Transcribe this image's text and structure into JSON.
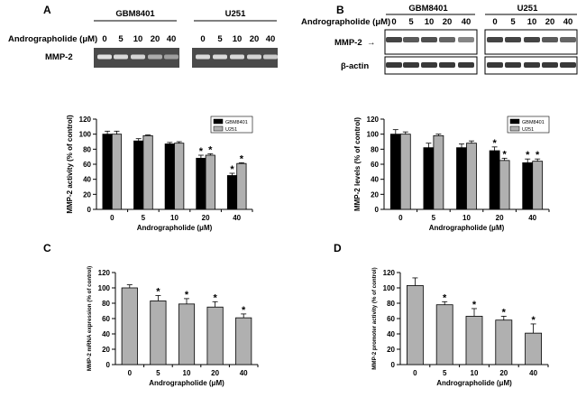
{
  "panels": {
    "A": {
      "label": "A",
      "treatment_label": "Andrographolide (μM)",
      "cell_lines": [
        "GBM8401",
        "U251"
      ],
      "doses": [
        "0",
        "5",
        "10",
        "20",
        "40"
      ],
      "blot_rows": [
        "MMP-2"
      ],
      "band_intensity": {
        "GBM8401": [
          0.9,
          0.85,
          0.82,
          0.55,
          0.45
        ],
        "U251": [
          0.85,
          0.85,
          0.85,
          0.82,
          0.75
        ]
      }
    },
    "B": {
      "label": "B",
      "treatment_label": "Andrographolide (μM)",
      "cell_lines": [
        "GBM8401",
        "U251"
      ],
      "doses": [
        "0",
        "5",
        "10",
        "20",
        "40"
      ],
      "blot_rows": [
        "MMP-2",
        "β-actin"
      ],
      "band_intensity": {
        "MMP-2": {
          "GBM8401": [
            0.85,
            0.75,
            0.8,
            0.7,
            0.55
          ],
          "U251": [
            0.85,
            0.85,
            0.85,
            0.75,
            0.7
          ]
        },
        "β-actin": {
          "GBM8401": [
            0.9,
            0.9,
            0.9,
            0.9,
            0.9
          ],
          "U251": [
            0.9,
            0.9,
            0.9,
            0.9,
            0.9
          ]
        }
      }
    },
    "C": {
      "label": "C"
    },
    "D": {
      "label": "D"
    }
  },
  "chart_data": [
    {
      "id": "A",
      "type": "bar",
      "ylabel": "MMP-2 activity (% of control)",
      "xlabel": "Andrographolide (μM)",
      "categories": [
        "0",
        "5",
        "10",
        "20",
        "40"
      ],
      "ylim": [
        0,
        120
      ],
      "yticks": [
        "0",
        "20",
        "40",
        "60",
        "80",
        "100",
        "120"
      ],
      "legend": "top-right",
      "series": [
        {
          "name": "GBM8401",
          "color": "#000000",
          "values": [
            100,
            91,
            87,
            68,
            45
          ],
          "errors": [
            4,
            3,
            2,
            4,
            3
          ],
          "significant": [
            false,
            false,
            false,
            true,
            true
          ]
        },
        {
          "name": "U251",
          "color": "#b0b0b0",
          "values": [
            100,
            98,
            88,
            72,
            61
          ],
          "errors": [
            4,
            1,
            2,
            2,
            1
          ],
          "significant": [
            false,
            false,
            false,
            true,
            true
          ]
        }
      ],
      "annotation": "*"
    },
    {
      "id": "B",
      "type": "bar",
      "ylabel": "MMP-2 levels (% of control)",
      "xlabel": "Andrographolide (μM)",
      "categories": [
        "0",
        "5",
        "10",
        "20",
        "40"
      ],
      "ylim": [
        0,
        120
      ],
      "yticks": [
        "0",
        "20",
        "40",
        "60",
        "80",
        "100",
        "120"
      ],
      "legend": "top-right",
      "series": [
        {
          "name": "GBM8401",
          "color": "#000000",
          "values": [
            100,
            82,
            82,
            78,
            62
          ],
          "errors": [
            6,
            6,
            5,
            5,
            5
          ],
          "significant": [
            false,
            false,
            false,
            true,
            true
          ]
        },
        {
          "name": "U251",
          "color": "#b0b0b0",
          "values": [
            100,
            98,
            88,
            65,
            64
          ],
          "errors": [
            3,
            2,
            3,
            3,
            3
          ],
          "significant": [
            false,
            false,
            false,
            true,
            true
          ]
        }
      ],
      "annotation": "*"
    },
    {
      "id": "C",
      "type": "bar",
      "ylabel": "MMP-2 mRNA expression (% of control)",
      "xlabel": "Andrographolide (μM)",
      "categories": [
        "0",
        "5",
        "10",
        "20",
        "40"
      ],
      "ylim": [
        0,
        120
      ],
      "yticks": [
        "0",
        "20",
        "40",
        "60",
        "80",
        "100",
        "120"
      ],
      "series": [
        {
          "name": "MMP-2 mRNA",
          "color": "#b0b0b0",
          "values": [
            100,
            83,
            79,
            75,
            61
          ],
          "errors": [
            4,
            7,
            7,
            7,
            5
          ],
          "significant": [
            false,
            true,
            true,
            true,
            true
          ]
        }
      ],
      "annotation": "*"
    },
    {
      "id": "D",
      "type": "bar",
      "ylabel": "MMP-2 promoter activity (% of control)",
      "xlabel": "Andrographolide (μM)",
      "categories": [
        "0",
        "5",
        "10",
        "20",
        "40"
      ],
      "ylim": [
        0,
        120
      ],
      "yticks": [
        "0",
        "20",
        "40",
        "60",
        "80",
        "100",
        "120"
      ],
      "series": [
        {
          "name": "MMP-2 promoter",
          "color": "#b0b0b0",
          "values": [
            103,
            78,
            63,
            58,
            41
          ],
          "errors": [
            10,
            4,
            10,
            5,
            12
          ],
          "significant": [
            false,
            true,
            true,
            true,
            true
          ]
        }
      ],
      "annotation": "*"
    }
  ]
}
